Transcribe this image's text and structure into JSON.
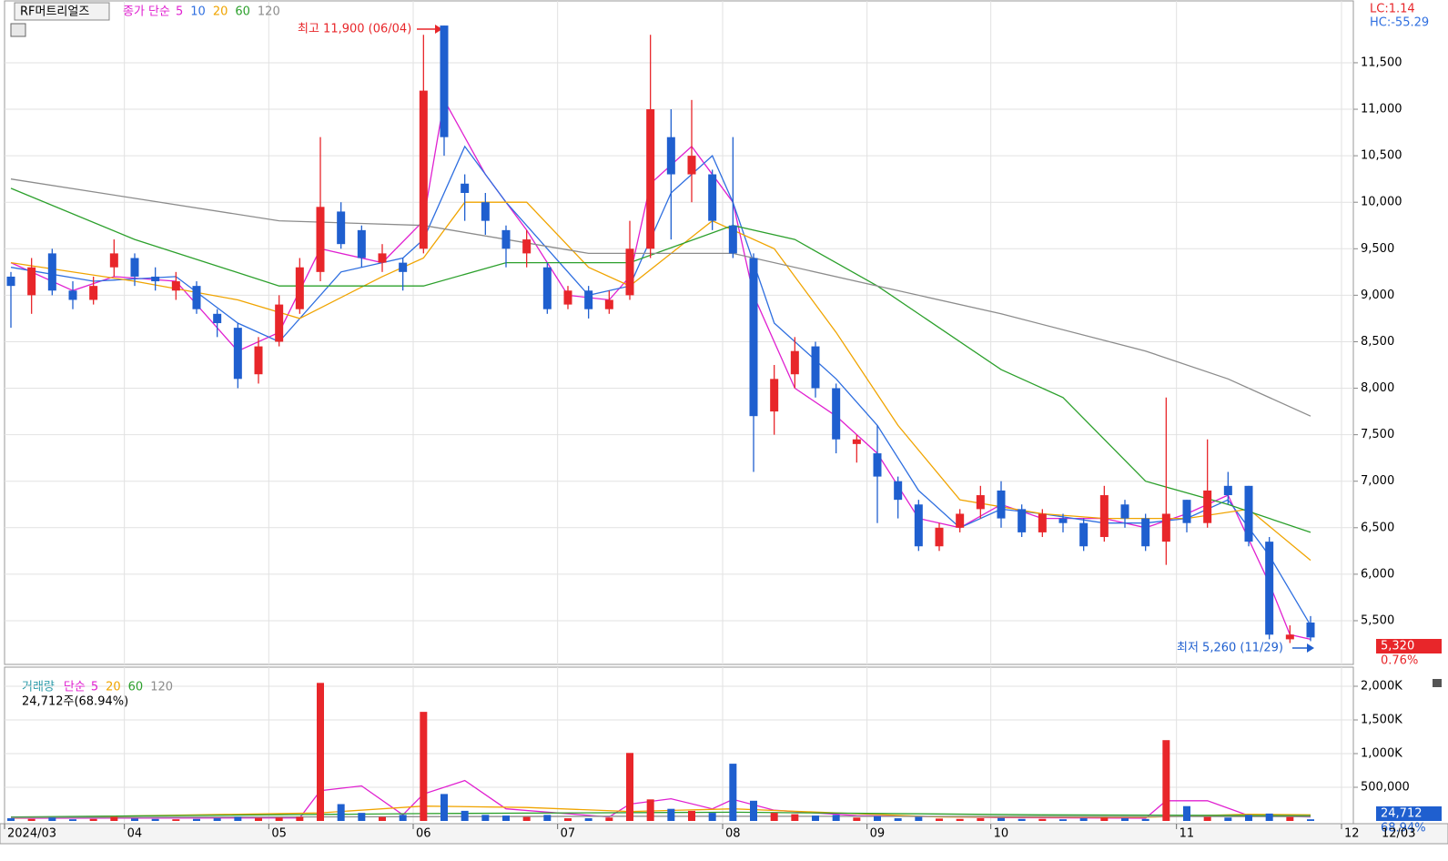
{
  "title": "RF머트리얼즈",
  "chart_data": {
    "type": "candlestick",
    "categories": [
      "2024/03",
      null,
      null,
      null,
      null,
      null,
      "04",
      null,
      null,
      null,
      null,
      null,
      null,
      "05",
      null,
      null,
      null,
      null,
      null,
      null,
      "06",
      null,
      null,
      null,
      null,
      null,
      null,
      "07",
      null,
      null,
      null,
      null,
      null,
      null,
      null,
      "08",
      null,
      null,
      null,
      null,
      null,
      null,
      "09",
      null,
      null,
      null,
      null,
      null,
      "10",
      null,
      null,
      null,
      null,
      null,
      null,
      null,
      null,
      "11",
      null,
      null,
      null,
      null,
      null,
      null,
      null,
      "12"
    ],
    "candles": [
      [
        9200,
        9250,
        8650,
        9100
      ],
      [
        9000,
        9400,
        8800,
        9300
      ],
      [
        9450,
        9500,
        9000,
        9050
      ],
      [
        9050,
        9150,
        8850,
        8950
      ],
      [
        8950,
        9200,
        8900,
        9100
      ],
      [
        9300,
        9600,
        9200,
        9450
      ],
      [
        9400,
        9450,
        9100,
        9200
      ],
      [
        9200,
        9300,
        9050,
        9150
      ],
      [
        9050,
        9250,
        8950,
        9150
      ],
      [
        9100,
        9150,
        8800,
        8850
      ],
      [
        8800,
        8850,
        8550,
        8700
      ],
      [
        8650,
        8700,
        8000,
        8100
      ],
      [
        8150,
        8550,
        8050,
        8450
      ],
      [
        8500,
        9000,
        8450,
        8900
      ],
      [
        8850,
        9400,
        8800,
        9300
      ],
      [
        9250,
        10700,
        9150,
        9950
      ],
      [
        9900,
        10000,
        9500,
        9550
      ],
      [
        9700,
        9750,
        9300,
        9400
      ],
      [
        9350,
        9550,
        9250,
        9450
      ],
      [
        9350,
        9400,
        9050,
        9250
      ],
      [
        9500,
        11800,
        9450,
        11200
      ],
      [
        11900,
        11900,
        10500,
        10700
      ],
      [
        10200,
        10300,
        9800,
        10100
      ],
      [
        10000,
        10100,
        9650,
        9800
      ],
      [
        9700,
        9750,
        9300,
        9500
      ],
      [
        9450,
        9700,
        9300,
        9600
      ],
      [
        9300,
        9350,
        8800,
        8850
      ],
      [
        8900,
        9100,
        8850,
        9050
      ],
      [
        9050,
        9100,
        8750,
        8850
      ],
      [
        8850,
        9050,
        8800,
        8950
      ],
      [
        9000,
        9800,
        8950,
        9500
      ],
      [
        9500,
        11800,
        9400,
        11000
      ],
      [
        10700,
        11000,
        9600,
        10300
      ],
      [
        10300,
        11100,
        10000,
        10500
      ],
      [
        10300,
        10350,
        9700,
        9800
      ],
      [
        9750,
        10700,
        9400,
        9450
      ],
      [
        9400,
        9450,
        7100,
        7700
      ],
      [
        7750,
        8250,
        7500,
        8100
      ],
      [
        8150,
        8550,
        8000,
        8400
      ],
      [
        8450,
        8500,
        7900,
        8000
      ],
      [
        8000,
        8050,
        7300,
        7450
      ],
      [
        7400,
        7500,
        7200,
        7450
      ],
      [
        7300,
        7600,
        6550,
        7050
      ],
      [
        7000,
        7050,
        6600,
        6800
      ],
      [
        6750,
        6800,
        6250,
        6300
      ],
      [
        6300,
        6550,
        6250,
        6500
      ],
      [
        6500,
        6700,
        6450,
        6650
      ],
      [
        6700,
        6950,
        6600,
        6850
      ],
      [
        6900,
        7000,
        6500,
        6600
      ],
      [
        6700,
        6750,
        6400,
        6450
      ],
      [
        6450,
        6700,
        6400,
        6650
      ],
      [
        6600,
        6650,
        6450,
        6550
      ],
      [
        6550,
        6600,
        6250,
        6300
      ],
      [
        6400,
        6950,
        6350,
        6850
      ],
      [
        6750,
        6800,
        6500,
        6600
      ],
      [
        6600,
        6650,
        6250,
        6300
      ],
      [
        6350,
        7900,
        6100,
        6650
      ],
      [
        6800,
        6800,
        6450,
        6550
      ],
      [
        6550,
        7450,
        6500,
        6900
      ],
      [
        6950,
        7100,
        6750,
        6850
      ],
      [
        6950,
        6950,
        6300,
        6350
      ],
      [
        6350,
        6400,
        5300,
        5350
      ],
      [
        5300,
        5450,
        5260,
        5350
      ],
      [
        5480,
        5550,
        5280,
        5320
      ]
    ],
    "up_color": "#e8262a",
    "down_color": "#1f5fcf",
    "ylim": [
      5030,
      12165
    ],
    "yticks": [
      {
        "value": 5500,
        "label": "5,500"
      },
      {
        "value": 6000,
        "label": "6,000"
      },
      {
        "value": 6500,
        "label": "6,500"
      },
      {
        "value": 7000,
        "label": "7,000"
      },
      {
        "value": 7500,
        "label": "7,500"
      },
      {
        "value": 8000,
        "label": "8,000"
      },
      {
        "value": 8500,
        "label": "8,500"
      },
      {
        "value": 9000,
        "label": "9,000"
      },
      {
        "value": 9500,
        "label": "9,500"
      },
      {
        "value": 10000,
        "label": "10,000"
      },
      {
        "value": 10500,
        "label": "10,500"
      },
      {
        "value": 11000,
        "label": "11,000"
      },
      {
        "value": 11500,
        "label": "11,500"
      }
    ],
    "grid": true,
    "ma_label": "종가 단순",
    "ma_series": [
      {
        "name": "5",
        "color": "#e020d0",
        "x": [
          0,
          3,
          5,
          8,
          11,
          13,
          15,
          18,
          20,
          21,
          23,
          25,
          27,
          29,
          30,
          31,
          33,
          35,
          36,
          38,
          40,
          42,
          44,
          46,
          48,
          50,
          53,
          55,
          57,
          59,
          61,
          62,
          63
        ],
        "values": [
          9350,
          9050,
          9200,
          9150,
          8400,
          8600,
          9500,
          9350,
          9800,
          11100,
          10300,
          9700,
          9000,
          8950,
          9200,
          10200,
          10600,
          10000,
          9000,
          8000,
          7700,
          7300,
          6600,
          6500,
          6750,
          6600,
          6600,
          6500,
          6650,
          6850,
          5900,
          5350,
          5300
        ]
      },
      {
        "name": "10",
        "color": "#2f6fe0",
        "x": [
          0,
          4,
          8,
          11,
          13,
          16,
          19,
          20,
          22,
          24,
          26,
          28,
          30,
          32,
          34,
          35,
          37,
          40,
          42,
          44,
          46,
          48,
          50,
          53,
          55,
          57,
          59,
          61,
          63
        ],
        "values": [
          9300,
          9150,
          9200,
          8700,
          8500,
          9250,
          9400,
          9600,
          10600,
          10000,
          9500,
          9000,
          9100,
          10100,
          10500,
          10000,
          8700,
          8100,
          7600,
          6900,
          6500,
          6700,
          6650,
          6550,
          6550,
          6600,
          6800,
          6200,
          5450
        ]
      },
      {
        "name": "20",
        "color": "#f0a400",
        "x": [
          0,
          6,
          11,
          14,
          18,
          20,
          22,
          25,
          28,
          30,
          34,
          37,
          40,
          43,
          46,
          50,
          53,
          57,
          60,
          63
        ],
        "values": [
          9350,
          9150,
          8950,
          8750,
          9200,
          9400,
          10000,
          10000,
          9300,
          9100,
          9800,
          9500,
          8600,
          7600,
          6800,
          6650,
          6600,
          6600,
          6700,
          6150
        ]
      },
      {
        "name": "60",
        "color": "#2ca02c",
        "x": [
          0,
          6,
          13,
          20,
          24,
          30,
          35,
          38,
          42,
          48,
          51,
          55,
          59,
          63
        ],
        "values": [
          10150,
          9600,
          9100,
          9100,
          9350,
          9350,
          9750,
          9600,
          9100,
          8200,
          7900,
          7000,
          6750,
          6450
        ]
      },
      {
        "name": "120",
        "color": "#8c8c8c",
        "x": [
          0,
          13,
          20,
          28,
          35,
          42,
          48,
          55,
          59,
          63
        ],
        "values": [
          10250,
          9800,
          9750,
          9450,
          9450,
          9100,
          8800,
          8400,
          8100,
          7700
        ]
      }
    ],
    "annotations": {
      "high": "최고 11,900 (06/04)",
      "low": "최저 5,260 (11/29)",
      "lc": "LC:1.14",
      "hc": "HC:-55.29",
      "last_price": "5,320",
      "change": "0.76%"
    },
    "end_date": "12/03",
    "volume": {
      "type": "bar",
      "title": "거래량",
      "ma_label": "단순",
      "info": "24,712주(68.94%)",
      "last_volume": "24,712",
      "last_ratio": "68.94%",
      "values": [
        40000,
        30000,
        50000,
        25000,
        30000,
        60000,
        35000,
        30000,
        25000,
        30000,
        40000,
        60000,
        45000,
        50000,
        60000,
        2050000,
        250000,
        120000,
        60000,
        90000,
        1620000,
        400000,
        150000,
        90000,
        80000,
        60000,
        90000,
        40000,
        40000,
        50000,
        1010000,
        320000,
        180000,
        150000,
        120000,
        850000,
        300000,
        120000,
        100000,
        80000,
        90000,
        50000,
        70000,
        40000,
        60000,
        35000,
        30000,
        40000,
        45000,
        30000,
        30000,
        25000,
        40000,
        50000,
        40000,
        30000,
        1200000,
        220000,
        60000,
        50000,
        90000,
        110000,
        60000,
        24712
      ],
      "ylim": [
        0,
        2284000
      ],
      "yticks": [
        {
          "value": 500000,
          "label": "500,000"
        },
        {
          "value": 1000000,
          "label": "1,000K"
        },
        {
          "value": 1500000,
          "label": "1,500K"
        },
        {
          "value": 2000000,
          "label": "2,000K"
        }
      ],
      "ma_series": [
        {
          "name": "5",
          "color": "#e020d0",
          "x": [
            0,
            14,
            15,
            17,
            19,
            20,
            22,
            24,
            29,
            30,
            32,
            34,
            35,
            37,
            41,
            48,
            55,
            56,
            58,
            60,
            63
          ],
          "values": [
            40000,
            45000,
            450000,
            520000,
            90000,
            400000,
            600000,
            180000,
            60000,
            250000,
            330000,
            180000,
            320000,
            160000,
            80000,
            50000,
            40000,
            300000,
            300000,
            80000,
            60000
          ]
        },
        {
          "name": "20",
          "color": "#f0a400",
          "x": [
            0,
            15,
            20,
            25,
            30,
            35,
            40,
            45,
            55,
            60,
            63
          ],
          "values": [
            45000,
            120000,
            220000,
            200000,
            140000,
            180000,
            120000,
            60000,
            55000,
            100000,
            90000
          ]
        },
        {
          "name": "60",
          "color": "#2ca02c",
          "x": [
            0,
            20,
            35,
            50,
            63
          ],
          "values": [
            60000,
            110000,
            130000,
            90000,
            80000
          ]
        },
        {
          "name": "120",
          "color": "#8c8c8c",
          "x": [
            0,
            30,
            63
          ],
          "values": [
            50000,
            70000,
            65000
          ]
        }
      ]
    }
  }
}
